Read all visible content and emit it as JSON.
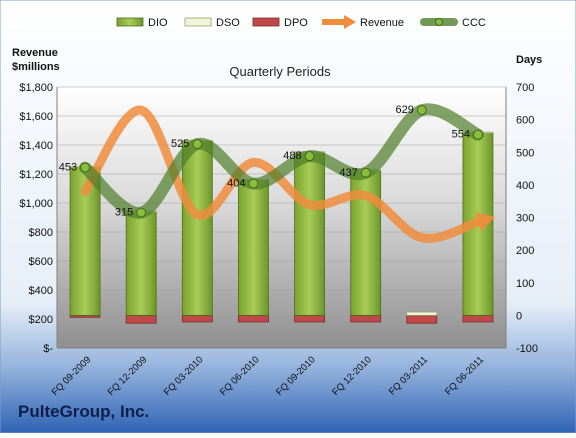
{
  "chart_data": {
    "type": "bar",
    "title": "Quarterly Periods",
    "company": "PulteGroup, Inc.",
    "categories": [
      "FQ 09-2009",
      "FQ 12-2009",
      "FQ 03-2010",
      "FQ 06-2010",
      "FQ 09-2010",
      "FQ 12-2010",
      "FQ 03-2011",
      "FQ 06-2011"
    ],
    "left_axis": {
      "label_line1": "Revenue",
      "label_line2": "$millions",
      "ylim": [
        0,
        1800
      ],
      "ticks": [
        0,
        200,
        400,
        600,
        800,
        1000,
        1200,
        1400,
        1600,
        1800
      ],
      "tick_labels": [
        "$-",
        "$200",
        "$400",
        "$600",
        "$800",
        "$1,000",
        "$1,200",
        "$1,400",
        "$1,600",
        "$1,800"
      ]
    },
    "right_axis": {
      "label": "Days",
      "ylim": [
        -100,
        700
      ],
      "ticks": [
        -100,
        0,
        100,
        200,
        300,
        400,
        500,
        600,
        700
      ],
      "tick_labels": [
        "-100",
        "0",
        "100",
        "200",
        "300",
        "400",
        "500",
        "600",
        "700"
      ]
    },
    "series": [
      {
        "name": "DIO",
        "kind": "bar",
        "axis": "right",
        "color": "#8cb43c",
        "values": [
          455,
          318,
          535,
          415,
          500,
          445,
          0,
          560
        ]
      },
      {
        "name": "DSO",
        "kind": "bar",
        "axis": "right",
        "color": "#f0f5d8",
        "values": [
          2,
          3,
          2,
          2,
          2,
          2,
          10,
          2
        ]
      },
      {
        "name": "DPO",
        "kind": "bar",
        "axis": "right",
        "color": "#c04848",
        "values": [
          -6,
          -24,
          -20,
          -20,
          -20,
          -20,
          -24,
          -20
        ]
      },
      {
        "name": "Revenue",
        "kind": "line",
        "axis": "left",
        "color": "#f08c3c",
        "values": [
          1080,
          1640,
          920,
          1280,
          990,
          1050,
          760,
          870
        ]
      },
      {
        "name": "CCC",
        "kind": "line",
        "axis": "right",
        "color": "#4f7f2a",
        "values": [
          453,
          315,
          525,
          404,
          488,
          437,
          629,
          554
        ]
      }
    ],
    "data_labels": [
      "453",
      "315",
      "525",
      "404",
      "488",
      "437",
      "629",
      "554"
    ],
    "legend_position": "top"
  }
}
